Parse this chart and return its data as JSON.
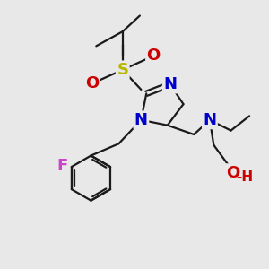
{
  "background_color": "#e8e8e8",
  "bond_color": "#1a1a1a",
  "atoms": {
    "S": {
      "color": "#b8b800",
      "fontsize": 13
    },
    "N": {
      "color": "#0000cc",
      "fontsize": 13
    },
    "O": {
      "color": "#cc0000",
      "fontsize": 13
    },
    "F": {
      "color": "#cc44cc",
      "fontsize": 13
    },
    "OH": {
      "color": "#cc0000",
      "fontsize": 13
    }
  },
  "figsize": [
    3.0,
    3.0
  ],
  "dpi": 100
}
